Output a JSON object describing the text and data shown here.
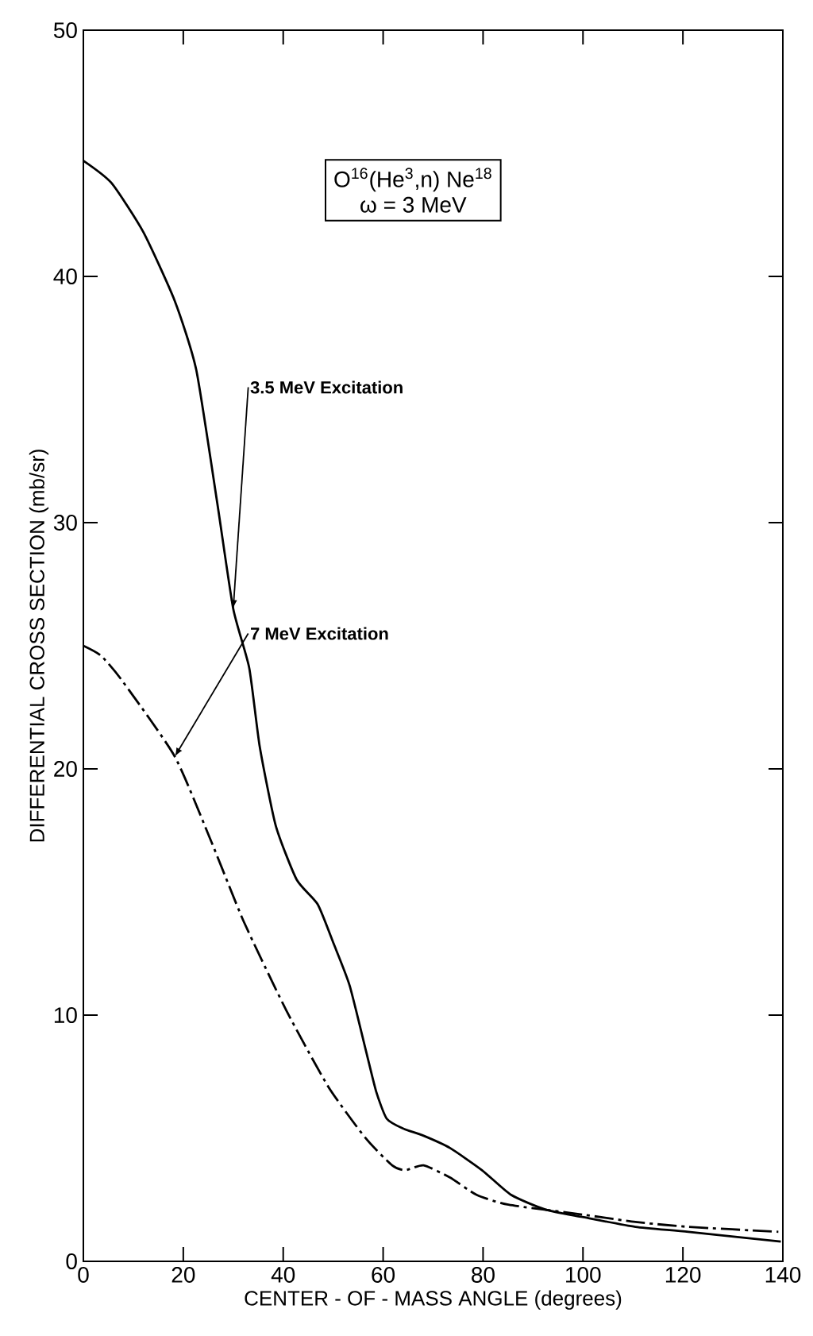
{
  "chart_data": {
    "type": "line",
    "xlabel": "CENTER - OF - MASS ANGLE (degrees)",
    "ylabel": "DIFFERENTIAL CROSS SECTION (mb/sr)",
    "annotations": [
      "O$^{16}$(He$^{3}$,n) Ne$^{18}$",
      "ω = 3 MeV"
    ],
    "xlim": [
      0,
      140
    ],
    "ylim": [
      0,
      50
    ],
    "xticks": [
      0,
      20,
      40,
      60,
      80,
      100,
      120,
      140
    ],
    "yticks": [
      0,
      10,
      20,
      30,
      40,
      50
    ],
    "grid": false,
    "legend": false,
    "series": [
      {
        "name": "3.5 MeV Excitation",
        "color": "#000000",
        "line_style": "solid",
        "x": [
          0,
          5.6,
          12,
          18.3,
          22.6,
          26.8,
          30,
          33.2,
          35.3,
          38.5,
          42.7,
          46.9,
          50.1,
          53.3,
          56.5,
          58.6,
          60.7,
          63.9,
          68.1,
          73.4,
          79.8,
          85.6,
          92.5,
          99.9,
          110.5,
          121.1,
          139.6
        ],
        "values": [
          44.7,
          43.8,
          41.8,
          39.0,
          36.2,
          30.8,
          26.5,
          24.1,
          20.9,
          17.7,
          15.5,
          14.5,
          12.9,
          11.2,
          8.6,
          6.9,
          5.8,
          5.4,
          5.1,
          4.6,
          3.7,
          2.7,
          2.1,
          1.8,
          1.4,
          1.2,
          0.8
        ]
      },
      {
        "name": "7 MeV Excitation",
        "color": "#000000",
        "line_style": "dashed",
        "x": [
          0,
          3.5,
          7.7,
          18.3,
          25.7,
          32.1,
          40.6,
          49.0,
          56.5,
          61.8,
          64.4,
          68.1,
          73.4,
          78.7,
          85.1,
          99.9,
          110.5,
          121.1,
          139.1
        ],
        "values": [
          25.0,
          24.6,
          23.6,
          20.5,
          17.0,
          13.8,
          10.2,
          7.1,
          5.0,
          3.9,
          3.7,
          3.9,
          3.4,
          2.7,
          2.3,
          1.9,
          1.6,
          1.4,
          1.2
        ]
      }
    ]
  }
}
